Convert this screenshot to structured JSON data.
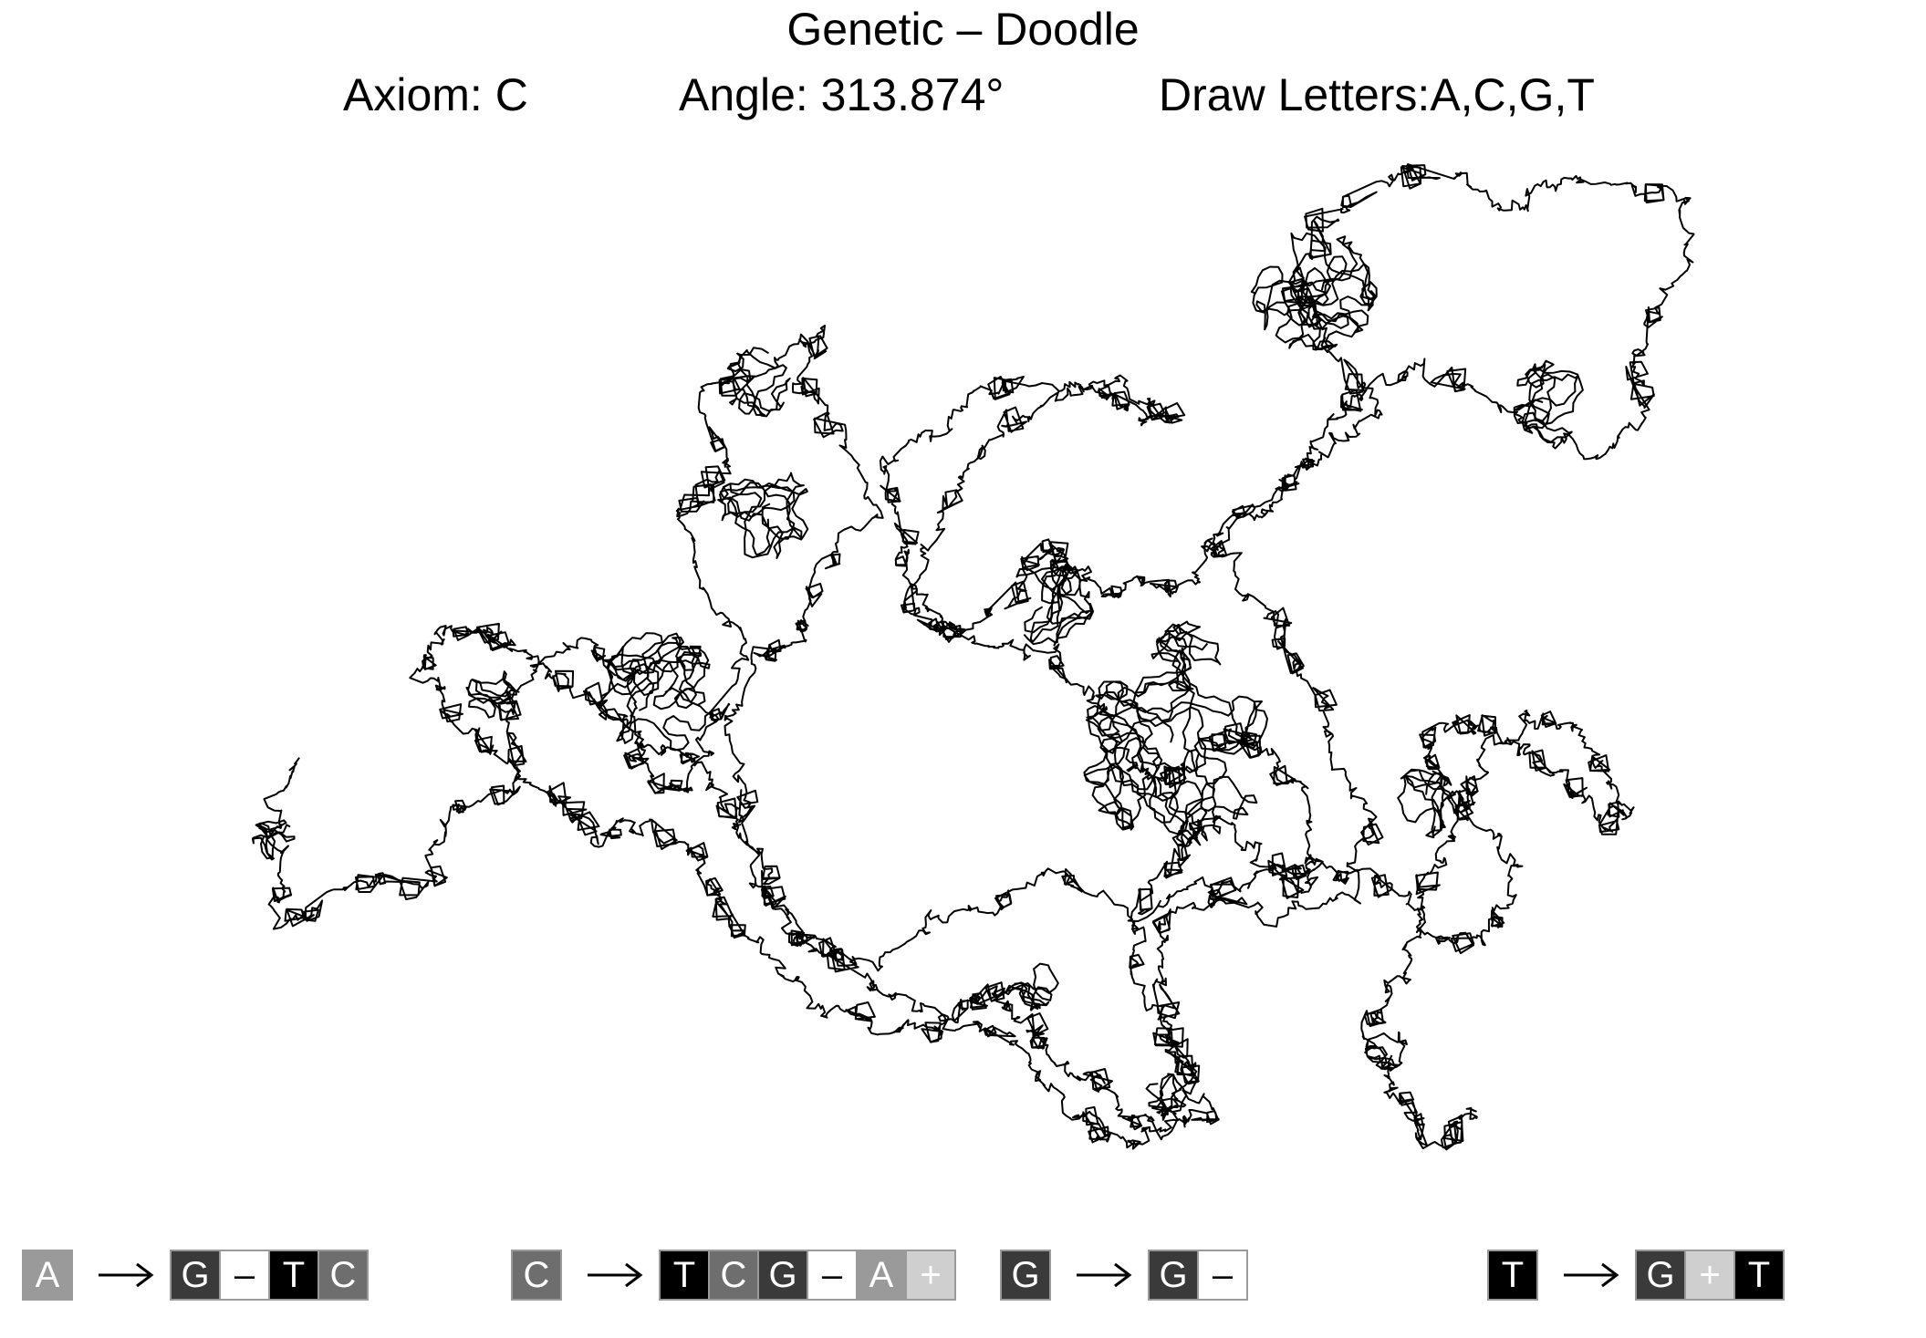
{
  "header": {
    "title": "Genetic – Doodle",
    "axiom": "Axiom: C",
    "angle": "Angle: 313.874°",
    "draw_letters": "Draw Letters:A,C,G,T"
  },
  "symbol_colors": {
    "A": "#9a9a9a",
    "C": "#6e6e6e",
    "G": "#3a3a3a",
    "T": "#000000",
    "-": "#ffffff",
    "+": "#cfcfcf"
  },
  "rules": [
    {
      "from": "A",
      "to": [
        "G",
        "–",
        "T",
        "C"
      ]
    },
    {
      "from": "C",
      "to": [
        "T",
        "C",
        "G",
        "–",
        "A",
        "+"
      ]
    },
    {
      "from": "G",
      "to": [
        "G",
        "–"
      ]
    },
    {
      "from": "T",
      "to": [
        "G",
        "+",
        "T"
      ]
    }
  ],
  "doodle": {
    "stroke_color": "#000000"
  }
}
